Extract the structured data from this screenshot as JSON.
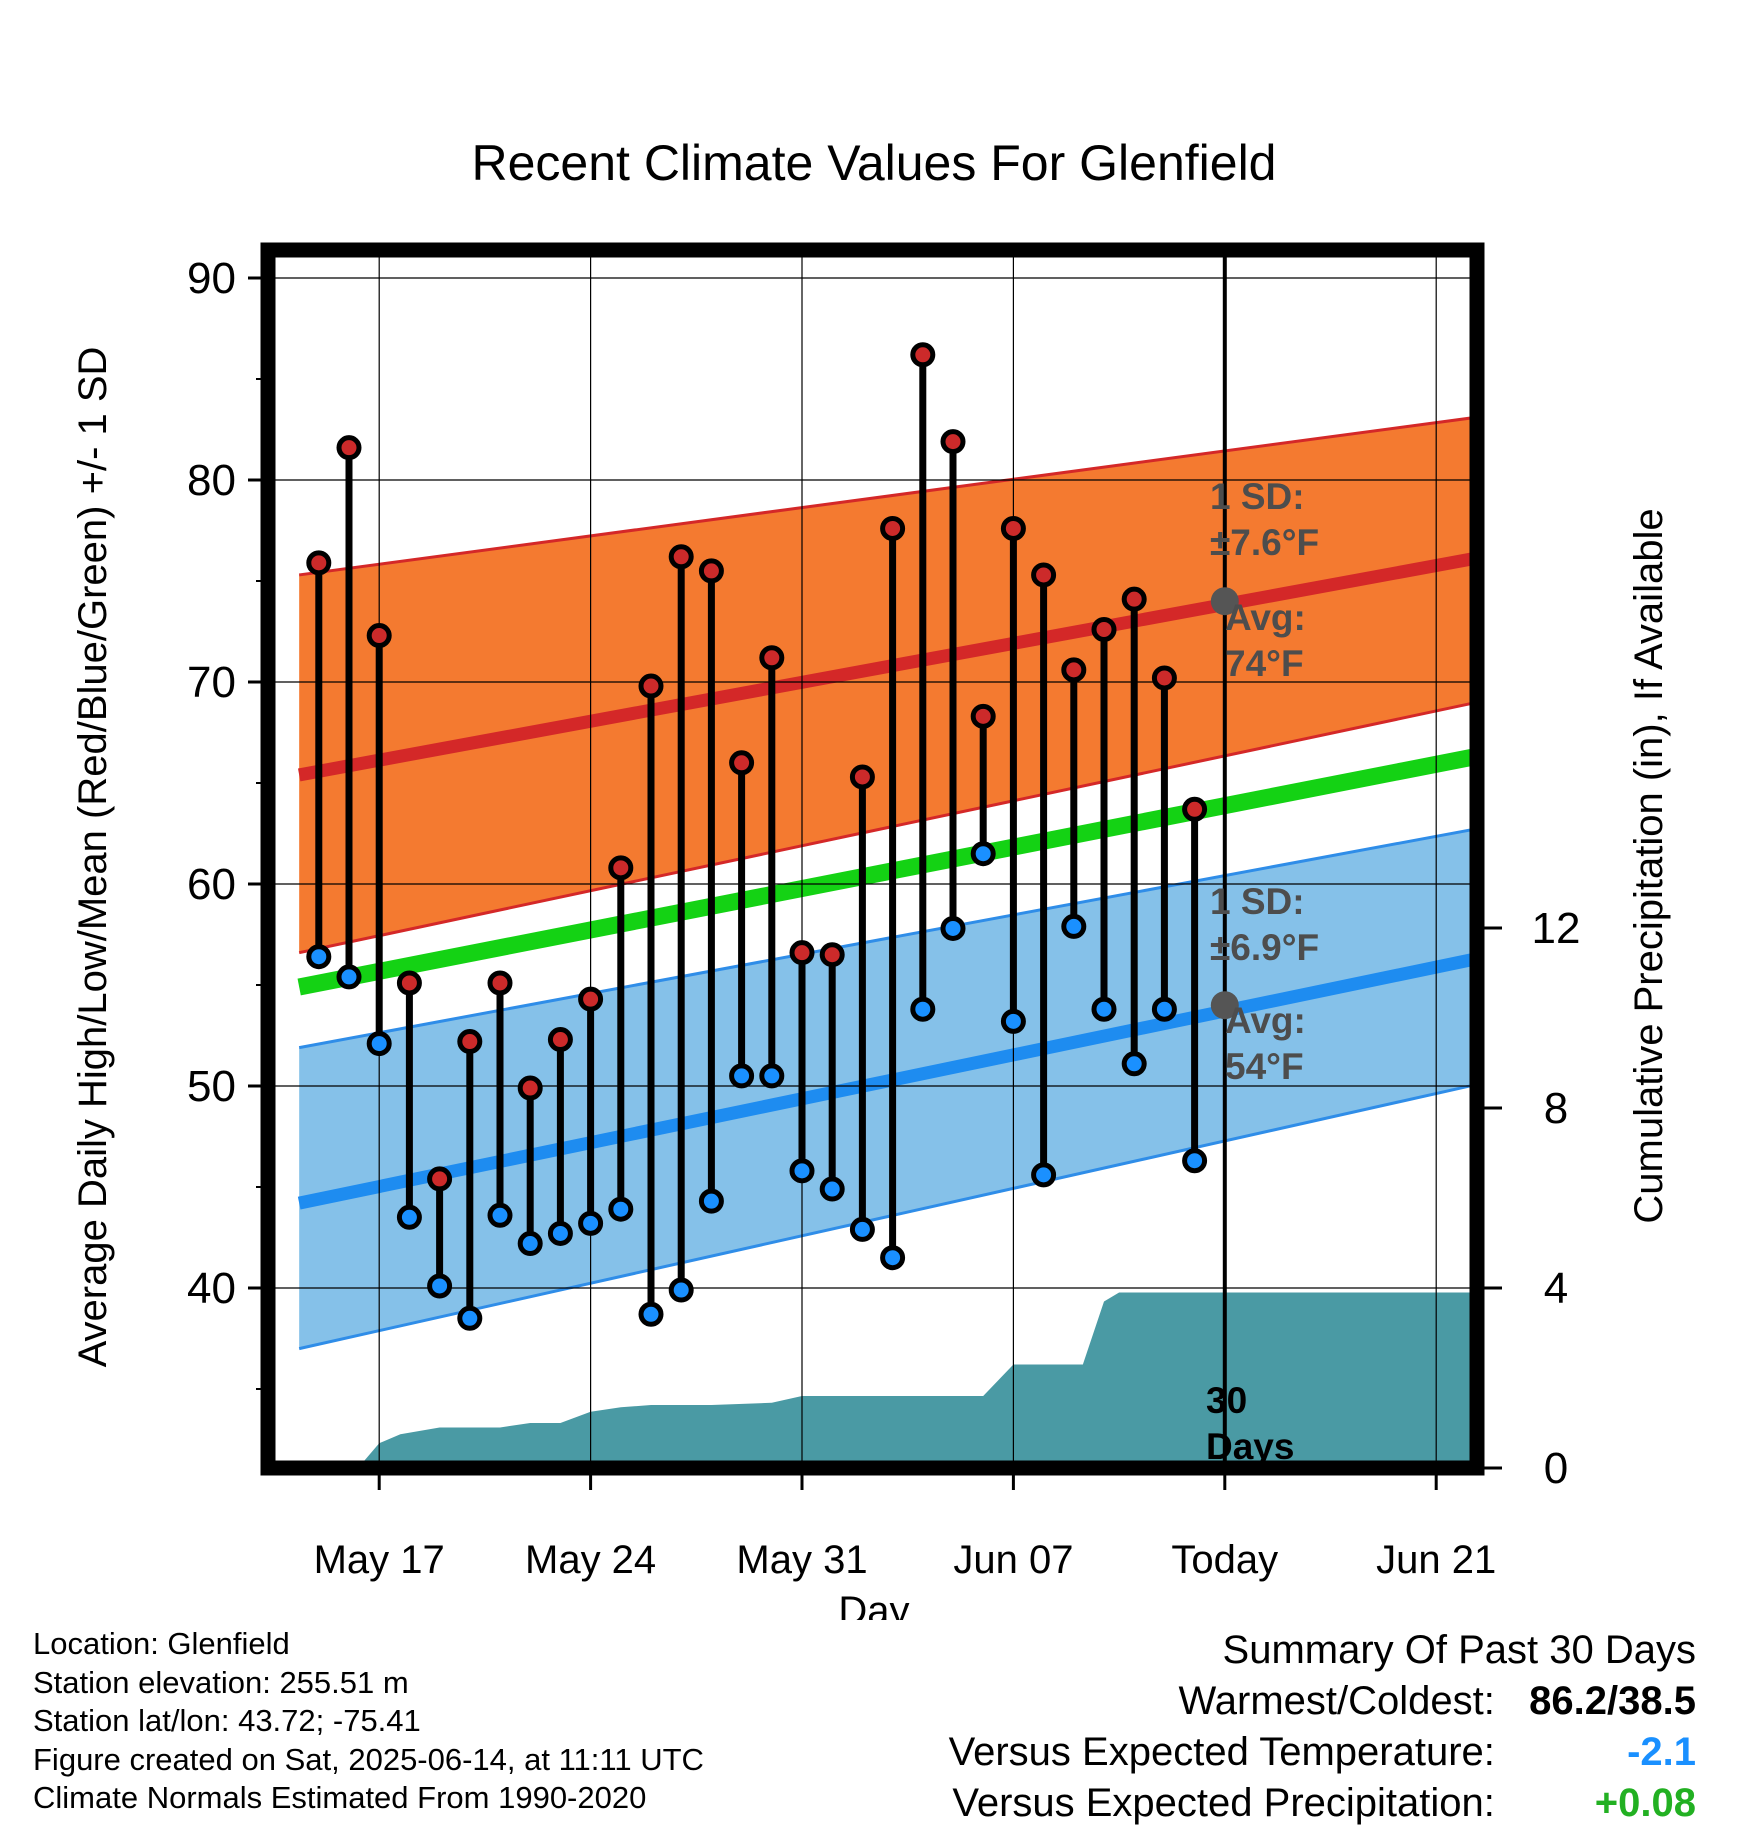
{
  "chart_data": {
    "type": "range",
    "title": "Recent Climate Values For Glenfield",
    "xlabel": "Day",
    "ylabel_left": "Average Daily High/Low/Mean (Red/Blue/Green) +/- 1 SD",
    "ylabel_right": "Cumulative Precipitation (in), If Available",
    "ylim": [
      31,
      91
    ],
    "y2lim": [
      0,
      14.35
    ],
    "x_ticks": [
      {
        "day": 1,
        "label": "May 17"
      },
      {
        "day": 8,
        "label": "May 24"
      },
      {
        "day": 15,
        "label": "May 31"
      },
      {
        "day": 22,
        "label": "Jun 07"
      },
      {
        "day": 29,
        "label": "Today"
      },
      {
        "day": 36,
        "label": "Jun 21"
      }
    ],
    "y_ticks": [
      40,
      50,
      60,
      70,
      80,
      90
    ],
    "y2_ticks": [
      0,
      4,
      8,
      12
    ],
    "day_numbers": [
      -1,
      0,
      1,
      2,
      3,
      4,
      5,
      6,
      7,
      8,
      9,
      10,
      11,
      12,
      13,
      14,
      15,
      16,
      17,
      18,
      19,
      20,
      21,
      22,
      23,
      24,
      25,
      26,
      27,
      28
    ],
    "highs": [
      75.9,
      81.6,
      72.3,
      55.1,
      45.4,
      52.2,
      55.1,
      49.9,
      52.3,
      54.3,
      60.8,
      69.8,
      76.2,
      75.5,
      66.0,
      71.2,
      56.6,
      56.5,
      65.3,
      77.6,
      86.2,
      81.9,
      68.3,
      77.6,
      75.3,
      70.6,
      72.6,
      74.1,
      70.2,
      63.7
    ],
    "lows": [
      56.4,
      55.4,
      52.1,
      43.5,
      40.1,
      38.5,
      43.6,
      42.2,
      42.7,
      43.2,
      43.9,
      38.7,
      39.9,
      44.3,
      50.5,
      50.5,
      45.8,
      44.9,
      42.9,
      41.5,
      53.8,
      57.8,
      61.5,
      53.2,
      45.6,
      57.9,
      53.8,
      51.1,
      53.8,
      46.3
    ],
    "normals": {
      "x_range": [
        -1.65,
        38.3
      ],
      "avg_high": [
        65.4,
        76.4
      ],
      "high_sd_band_upper": [
        75.3,
        83.3
      ],
      "high_sd_band_lower": [
        56.6,
        69.3
      ],
      "avg_mean": [
        54.9,
        66.6
      ],
      "avg_low": [
        44.2,
        56.6
      ],
      "low_sd_band_upper": [
        51.9,
        63.0
      ],
      "low_sd_band_lower": [
        37.0,
        50.4
      ]
    },
    "precip_cumulative": {
      "x": [
        -1.65,
        0.3,
        1.0,
        1.7,
        3.0,
        4.0,
        5.0,
        6.0,
        7.0,
        8.0,
        9.0,
        10.0,
        12.0,
        14.0,
        15.0,
        16.0,
        17.0,
        18.0,
        19.0,
        20.0,
        21.0,
        22.0,
        22.5,
        23.0,
        24.0,
        24.3,
        25.0,
        25.5,
        26.0,
        27.0,
        28.0,
        29.0,
        38.3
      ],
      "y": [
        0,
        0,
        0.55,
        0.75,
        0.9,
        0.9,
        0.9,
        1.0,
        1.0,
        1.25,
        1.35,
        1.4,
        1.4,
        1.45,
        1.6,
        1.6,
        1.6,
        1.6,
        1.6,
        1.6,
        1.6,
        2.3,
        2.3,
        2.3,
        2.3,
        2.3,
        3.7,
        3.9,
        3.9,
        3.9,
        3.9,
        3.9,
        3.9
      ]
    },
    "precip_fill_color": "#4a9aa4",
    "colors": {
      "high_band": "#f47a30",
      "avg_high": "#d42828",
      "avg_mean": "#14d214",
      "low_band": "#85c1e9",
      "low_band_edge": "#2f8de8",
      "avg_low": "#1e8cf0",
      "high_dot": "#cc2a2a",
      "low_dot": "#1a90ff",
      "annotation": "#4d4d4d",
      "normal_marker": "#555555"
    },
    "annotations": [
      {
        "id": "high_sd",
        "lines": [
          "1 SD:",
          "±7.6°F"
        ]
      },
      {
        "id": "high_avg",
        "lines": [
          "Avg:",
          "74°F"
        ]
      },
      {
        "id": "low_sd",
        "lines": [
          "1 SD:",
          "±6.9°F"
        ]
      },
      {
        "id": "low_avg",
        "lines": [
          "Avg:",
          "54°F"
        ]
      },
      {
        "id": "days",
        "lines": [
          "30",
          "Days"
        ]
      }
    ],
    "today_markers": {
      "high": 74,
      "low": 54
    }
  },
  "info": {
    "location": "Location: Glenfield",
    "elevation": "Station elevation: 255.51 m",
    "latlon": "Station lat/lon: 43.72; -75.41",
    "created": "Figure created on Sat, 2025-06-14, at 11:11 UTC",
    "normals": "Climate Normals Estimated From 1990-2020"
  },
  "summary": {
    "title": "Summary Of Past 30 Days",
    "warm_label": "Warmest/Coldest:",
    "warm_value": "86.2/38.5",
    "temp_label": "Versus Expected Temperature:",
    "temp_value": "-2.1",
    "temp_color": "#1a90ff",
    "precip_label": "Versus Expected Precipitation:",
    "precip_value": "+0.08",
    "precip_color": "#22b022"
  }
}
